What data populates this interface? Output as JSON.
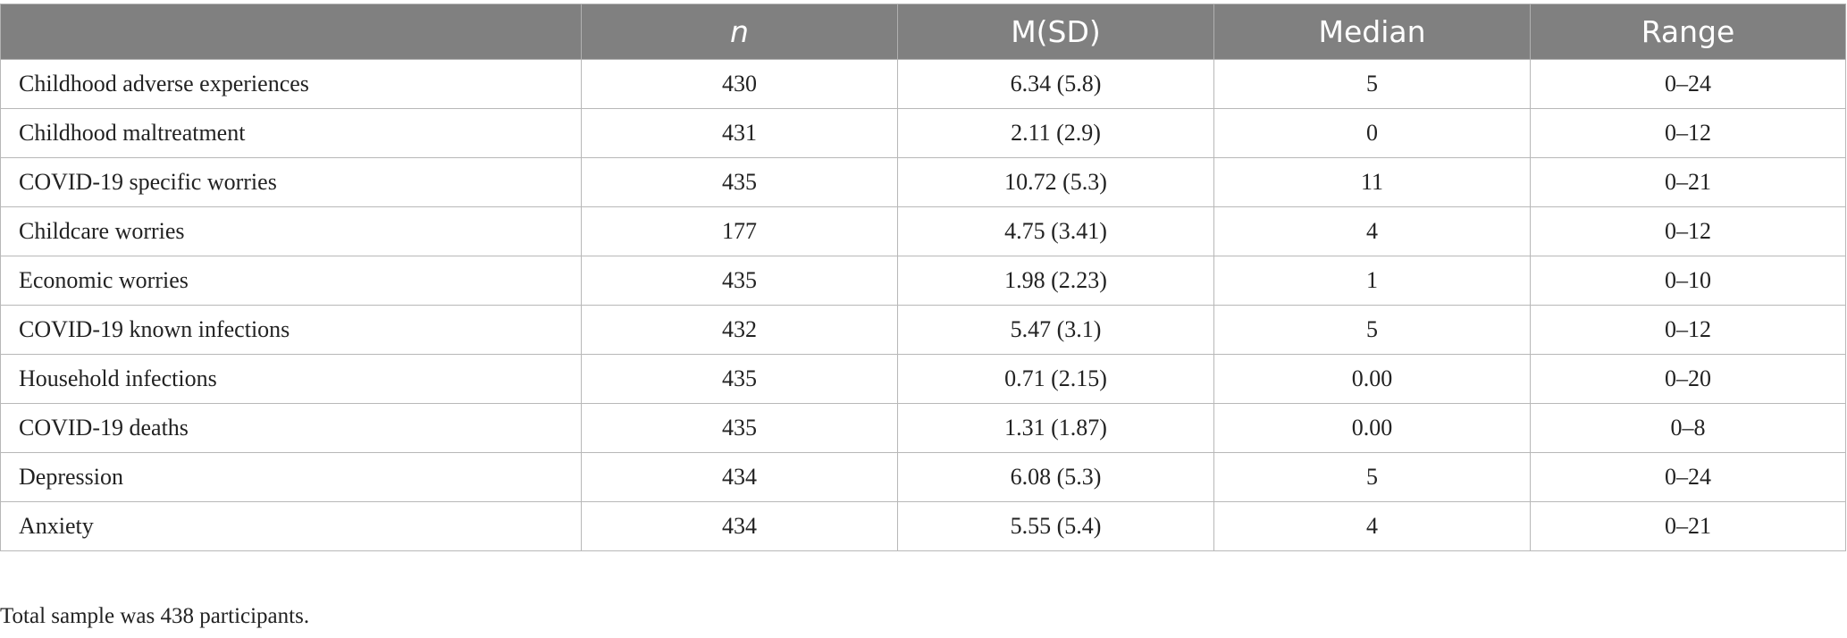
{
  "table": {
    "headers": [
      "n",
      "M(SD)",
      "Median",
      "Range"
    ],
    "rows": [
      [
        "Childhood adverse experiences",
        "430",
        "6.34 (5.8)",
        "5",
        "0–24"
      ],
      [
        "Childhood maltreatment",
        "431",
        "2.11 (2.9)",
        "0",
        "0–12"
      ],
      [
        "COVID-19 specific worries",
        "435",
        "10.72 (5.3)",
        "11",
        "0–21"
      ],
      [
        "Childcare worries",
        "177",
        "4.75 (3.41)",
        "4",
        "0–12"
      ],
      [
        "Economic worries",
        "435",
        "1.98 (2.23)",
        "1",
        "0–10"
      ],
      [
        "COVID-19 known infections",
        "432",
        "5.47 (3.1)",
        "5",
        "0–12"
      ],
      [
        "Household infections",
        "435",
        "0.71 (2.15)",
        "0.00",
        "0–20"
      ],
      [
        "COVID-19 deaths",
        "435",
        "1.31 (1.87)",
        "0.00",
        "0–8"
      ],
      [
        "Depression",
        "434",
        "6.08 (5.3)",
        "5",
        "0–24"
      ],
      [
        "Anxiety",
        "434",
        "5.55 (5.4)",
        "4",
        "0–21"
      ]
    ]
  },
  "footnote": "Total sample was 438 participants."
}
